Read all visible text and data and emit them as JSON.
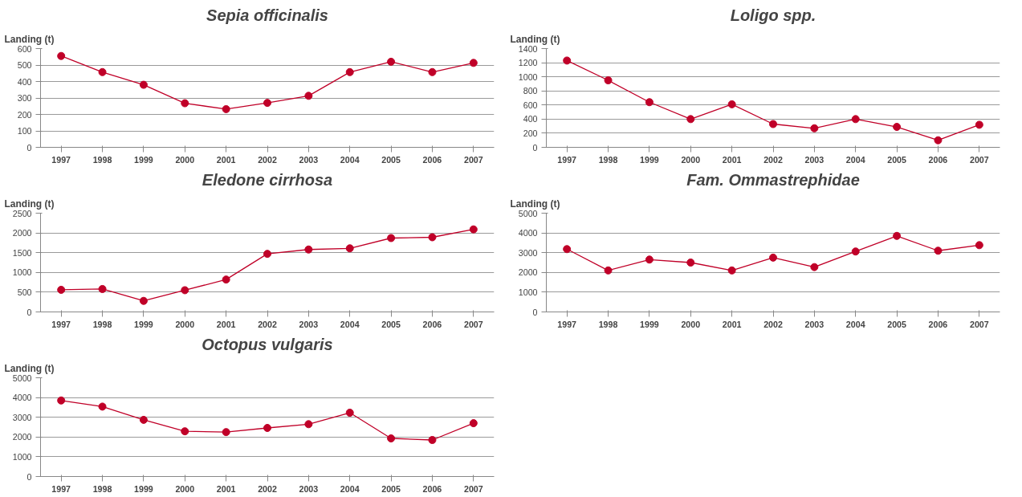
{
  "chart_data": [
    {
      "type": "line",
      "title": "Sepia officinalis",
      "ylabel": "Landing (t)",
      "categories": [
        "1997",
        "1998",
        "1999",
        "2000",
        "2001",
        "2002",
        "2003",
        "2004",
        "2005",
        "2006",
        "2007"
      ],
      "series": [
        {
          "color": "#c00028",
          "values": [
            555,
            457,
            380,
            268,
            232,
            270,
            313,
            457,
            520,
            457,
            513
          ]
        }
      ],
      "ylim": [
        0,
        600
      ],
      "yticks": [
        0,
        100,
        200,
        300,
        400,
        500,
        600
      ],
      "grid": "y",
      "marker": "circle"
    },
    {
      "type": "line",
      "title": "Loligo spp.",
      "ylabel": "Landing (t)",
      "categories": [
        "1997",
        "1998",
        "1999",
        "2000",
        "2001",
        "2002",
        "2003",
        "2004",
        "2005",
        "2006",
        "2007"
      ],
      "series": [
        {
          "color": "#c00028",
          "values": [
            1230,
            950,
            640,
            400,
            610,
            330,
            270,
            400,
            290,
            100,
            320
          ]
        }
      ],
      "ylim": [
        0,
        1400
      ],
      "yticks": [
        0,
        200,
        400,
        600,
        800,
        1000,
        1200,
        1400
      ],
      "grid": "y",
      "marker": "circle"
    },
    {
      "type": "line",
      "title": "Eledone cirrhosa",
      "ylabel": "Landing (t)",
      "categories": [
        "1997",
        "1998",
        "1999",
        "2000",
        "2001",
        "2002",
        "2003",
        "2004",
        "2005",
        "2006",
        "2007"
      ],
      "series": [
        {
          "color": "#c00028",
          "values": [
            560,
            580,
            280,
            550,
            820,
            1470,
            1580,
            1610,
            1870,
            1890,
            2090
          ]
        }
      ],
      "ylim": [
        0,
        2500
      ],
      "yticks": [
        0,
        500,
        1000,
        1500,
        2000,
        2500
      ],
      "grid": "y",
      "marker": "circle"
    },
    {
      "type": "line",
      "title": "Fam. Ommastrephidae",
      "ylabel": "Landing (t)",
      "categories": [
        "1997",
        "1998",
        "1999",
        "2000",
        "2001",
        "2002",
        "2003",
        "2004",
        "2005",
        "2006",
        "2007"
      ],
      "series": [
        {
          "color": "#c00028",
          "values": [
            3180,
            2100,
            2650,
            2500,
            2100,
            2750,
            2270,
            3060,
            3850,
            3100,
            3380
          ]
        }
      ],
      "ylim": [
        0,
        5000
      ],
      "yticks": [
        0,
        1000,
        2000,
        3000,
        4000,
        5000
      ],
      "grid": "y",
      "marker": "circle"
    },
    {
      "type": "line",
      "title": "Octopus vulgaris",
      "ylabel": "Landing (t)",
      "categories": [
        "1997",
        "1998",
        "1999",
        "2000",
        "2001",
        "2002",
        "2003",
        "2004",
        "2005",
        "2006",
        "2007"
      ],
      "series": [
        {
          "color": "#c00028",
          "values": [
            3850,
            3540,
            2870,
            2290,
            2250,
            2460,
            2650,
            3230,
            1930,
            1850,
            2700
          ]
        }
      ],
      "ylim": [
        0,
        5000
      ],
      "yticks": [
        0,
        1000,
        2000,
        3000,
        4000,
        5000
      ],
      "grid": "y",
      "marker": "circle"
    }
  ]
}
